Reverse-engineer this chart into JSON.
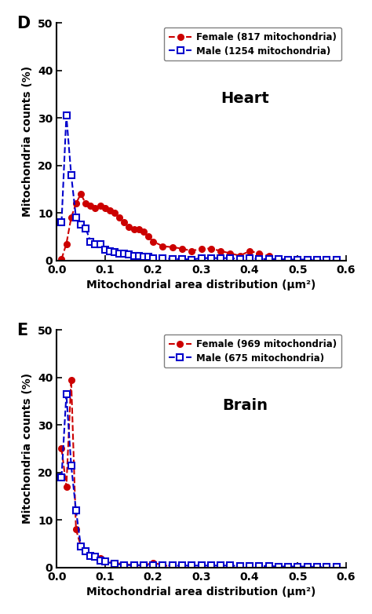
{
  "heart_female_x": [
    0.01,
    0.02,
    0.03,
    0.04,
    0.05,
    0.06,
    0.07,
    0.08,
    0.09,
    0.1,
    0.11,
    0.12,
    0.13,
    0.14,
    0.15,
    0.16,
    0.17,
    0.18,
    0.19,
    0.2,
    0.22,
    0.24,
    0.26,
    0.28,
    0.3,
    0.32,
    0.34,
    0.36,
    0.38,
    0.4,
    0.42,
    0.44
  ],
  "heart_female_y": [
    0.3,
    3.5,
    9.0,
    12.0,
    14.0,
    12.0,
    11.5,
    11.0,
    11.5,
    11.0,
    10.5,
    10.0,
    9.0,
    8.0,
    7.0,
    6.5,
    6.5,
    6.0,
    5.0,
    4.0,
    3.0,
    2.8,
    2.5,
    2.0,
    2.5,
    2.5,
    2.0,
    1.5,
    1.0,
    2.0,
    1.5,
    1.0
  ],
  "heart_male_x": [
    0.01,
    0.02,
    0.03,
    0.04,
    0.05,
    0.06,
    0.07,
    0.08,
    0.09,
    0.1,
    0.11,
    0.12,
    0.13,
    0.14,
    0.15,
    0.16,
    0.17,
    0.18,
    0.19,
    0.2,
    0.22,
    0.24,
    0.26,
    0.28,
    0.3,
    0.32,
    0.34,
    0.36,
    0.38,
    0.4,
    0.42,
    0.44,
    0.46,
    0.48,
    0.5,
    0.52,
    0.54,
    0.56,
    0.58
  ],
  "heart_male_y": [
    8.0,
    30.5,
    18.0,
    9.0,
    7.5,
    6.8,
    4.0,
    3.5,
    3.5,
    2.2,
    2.0,
    1.8,
    1.5,
    1.5,
    1.2,
    1.0,
    1.0,
    0.8,
    0.8,
    0.5,
    0.5,
    0.3,
    0.3,
    0.2,
    0.5,
    0.5,
    0.5,
    0.5,
    0.3,
    0.5,
    0.3,
    0.3,
    0.3,
    0.2,
    0.2,
    0.2,
    0.1,
    0.1,
    0.1
  ],
  "brain_female_x": [
    0.01,
    0.02,
    0.03,
    0.04,
    0.05,
    0.06,
    0.07,
    0.08,
    0.09,
    0.1,
    0.12,
    0.14,
    0.16,
    0.18,
    0.2,
    0.22,
    0.24
  ],
  "brain_female_y": [
    25.0,
    17.0,
    39.5,
    8.0,
    4.5,
    3.5,
    2.5,
    2.2,
    2.0,
    1.5,
    1.0,
    0.7,
    0.5,
    0.4,
    1.0,
    0.5,
    0.2
  ],
  "brain_male_x": [
    0.01,
    0.02,
    0.03,
    0.04,
    0.05,
    0.06,
    0.07,
    0.08,
    0.09,
    0.1,
    0.12,
    0.14,
    0.16,
    0.18,
    0.2,
    0.22,
    0.24,
    0.26,
    0.28,
    0.3,
    0.32,
    0.34,
    0.36,
    0.38,
    0.4,
    0.42,
    0.44,
    0.46,
    0.48,
    0.5,
    0.52,
    0.54,
    0.56,
    0.58
  ],
  "brain_male_y": [
    19.0,
    36.5,
    21.5,
    12.0,
    4.5,
    3.5,
    2.5,
    2.2,
    1.5,
    1.2,
    0.8,
    0.5,
    0.5,
    0.5,
    0.5,
    0.5,
    0.4,
    0.4,
    0.4,
    0.4,
    0.4,
    0.4,
    0.4,
    0.3,
    0.3,
    0.3,
    0.3,
    0.2,
    0.2,
    0.2,
    0.2,
    0.1,
    0.1,
    0.1
  ],
  "female_color": "#cc0000",
  "male_color": "#0000cc",
  "panel_D_label": "D",
  "panel_E_label": "E",
  "heart_title": "Heart",
  "brain_title": "Brain",
  "heart_female_legend": "Female (817 mitochondria)",
  "heart_male_legend": "Male (1254 mitochondria)",
  "brain_female_legend": "Female (969 mitochondria)",
  "brain_male_legend": "Male (675 mitochondria)",
  "xlabel": "Mitochondrial area distribution (μm²)",
  "ylabel": "Mitochondria counts (%)",
  "ylim": [
    0,
    50
  ],
  "xlim": [
    0,
    0.6
  ],
  "yticks": [
    0,
    10,
    20,
    30,
    40,
    50
  ],
  "xticks": [
    0.0,
    0.1,
    0.2,
    0.3,
    0.4,
    0.5,
    0.6
  ]
}
